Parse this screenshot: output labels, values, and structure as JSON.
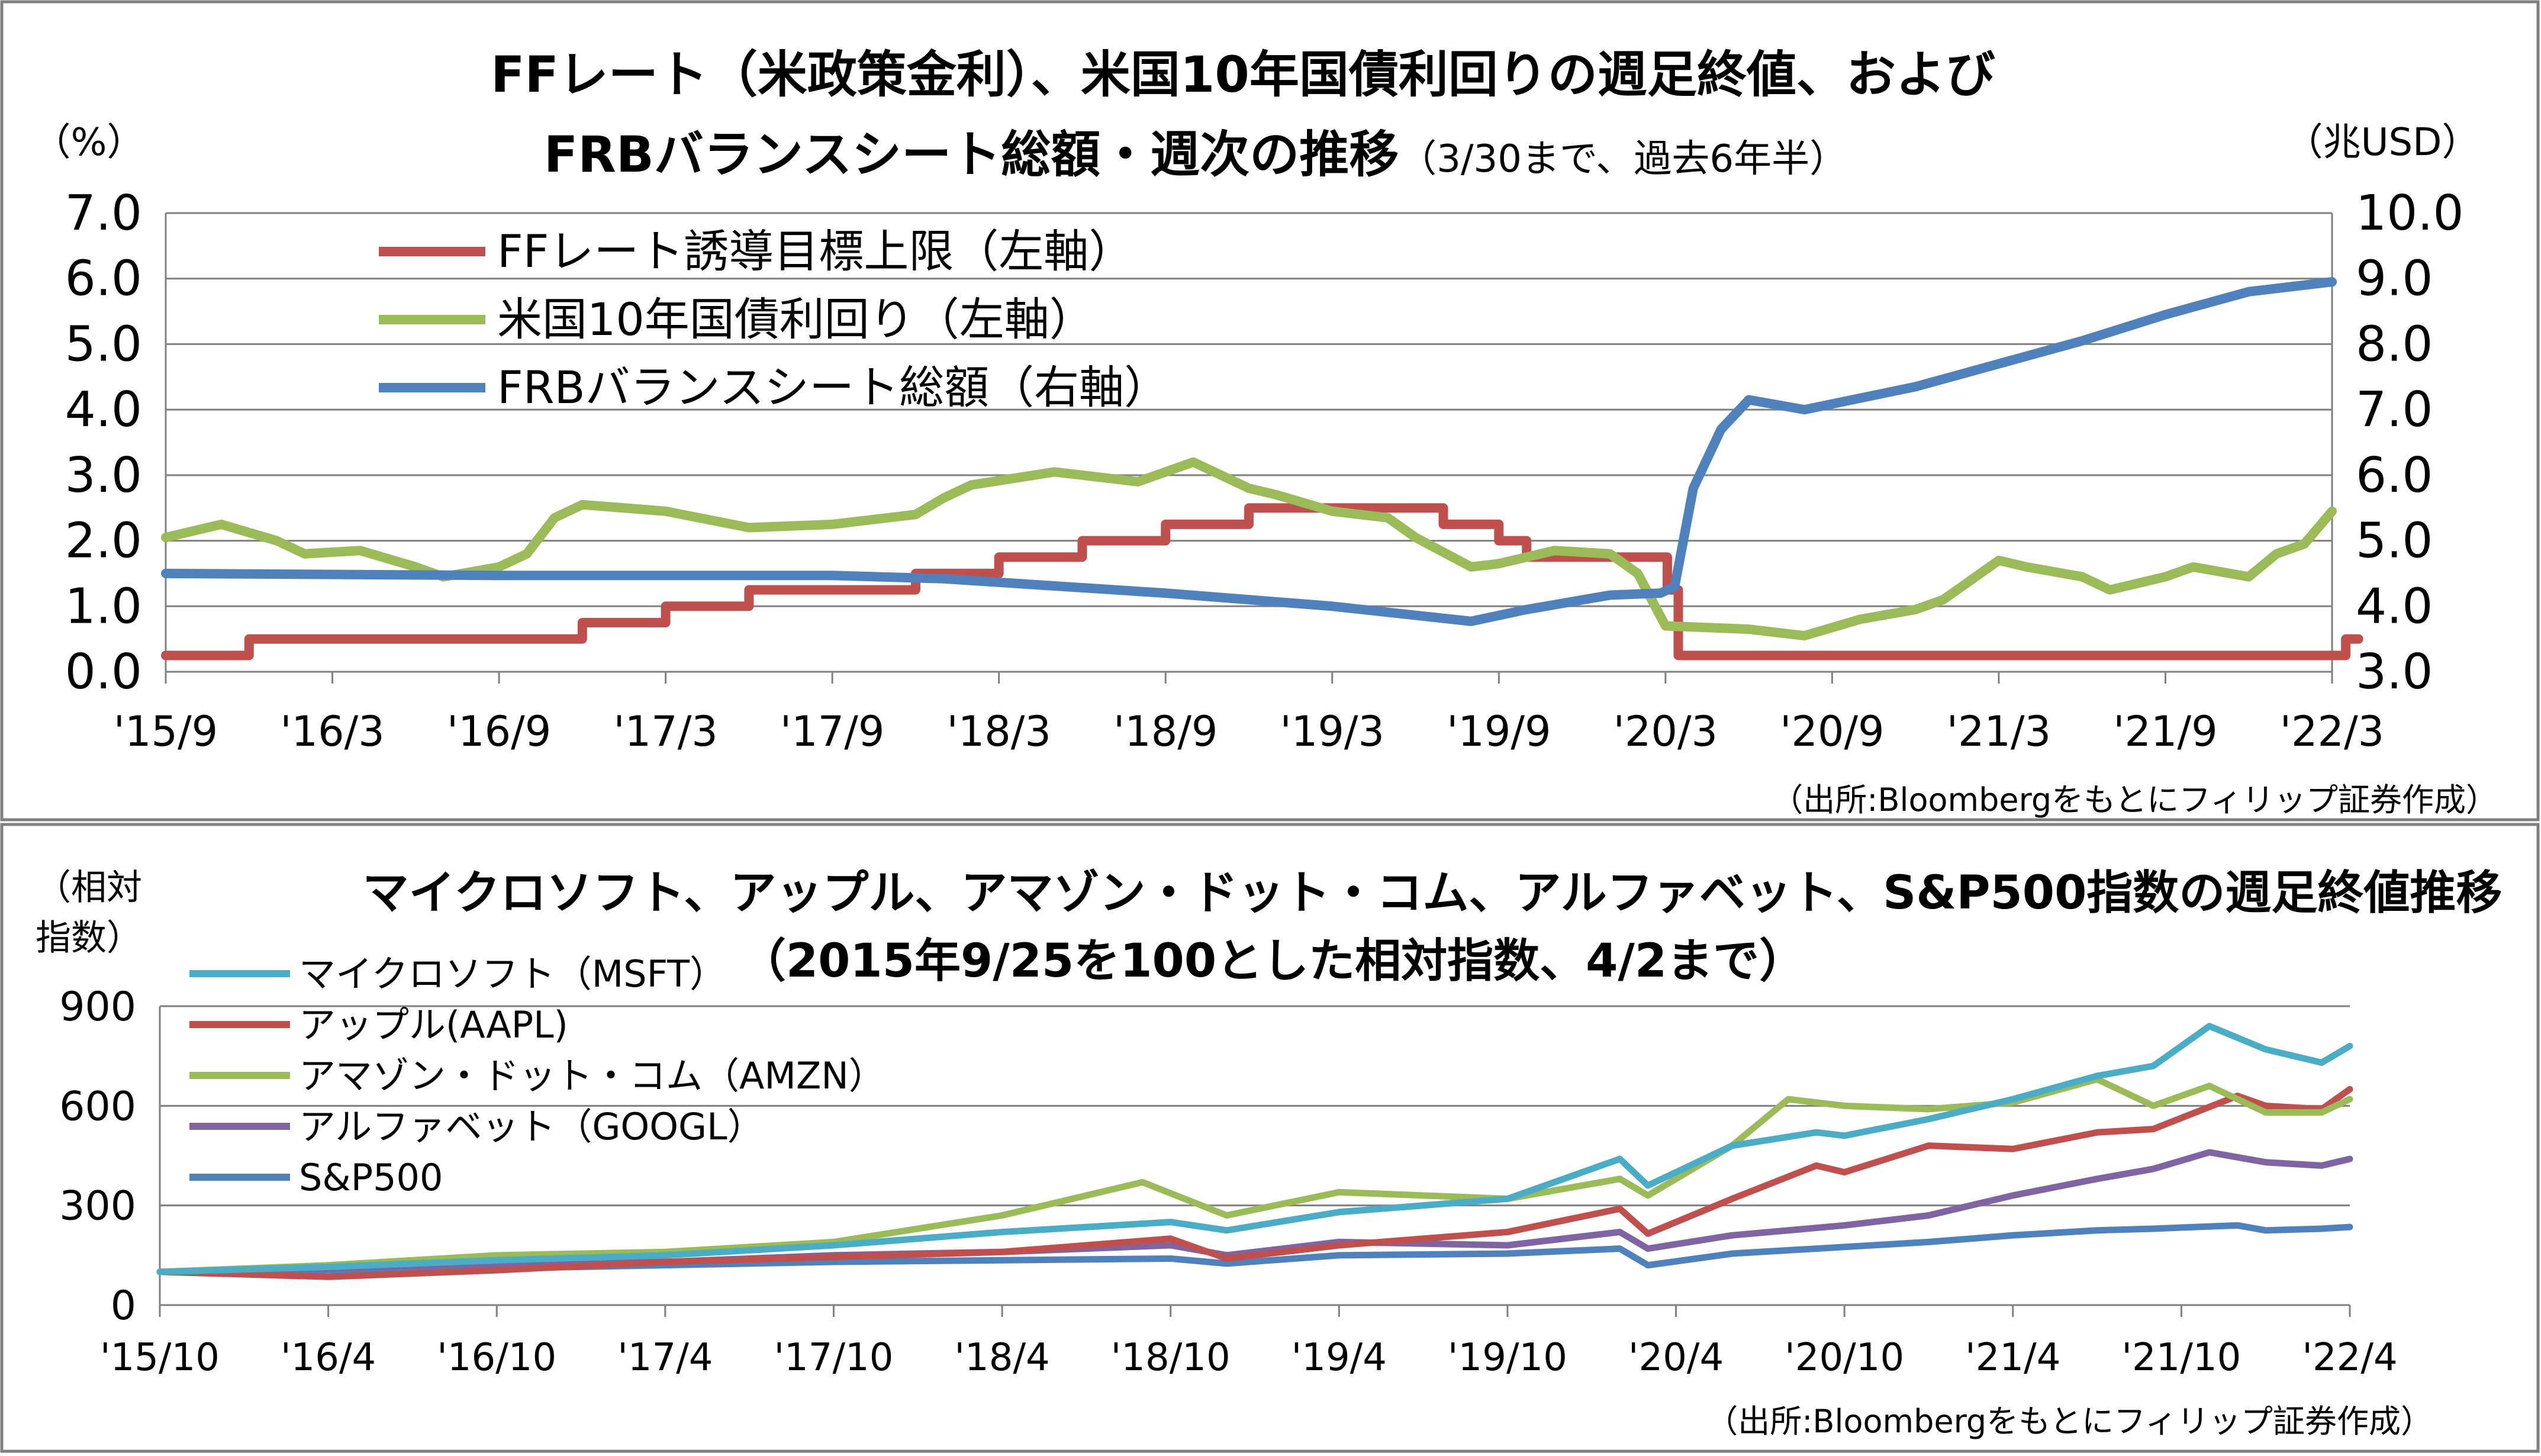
{
  "colors": {
    "red": "#c0504d",
    "green": "#9bbb59",
    "blue": "#4f81bd",
    "cyan": "#4bacc6",
    "purple": "#8064a2",
    "grid": "#808080",
    "border": "#808080"
  },
  "top": {
    "title_line1": "FFレート（米政策金利）、米国10年国債利回りの週足終値、および",
    "title_line2": "FRBバランスシート総額・週次の推移",
    "title_line2_small": "（3/30まで、過去6年半）",
    "left_unit": "（%）",
    "right_unit": "（兆USD）",
    "source": "（出所:Bloombergをもとにフィリップ証券作成）"
  },
  "bottom": {
    "title_line1": "マイクロソフト、アップル、アマゾン・ドット・コム、アルファベット、S&P500指数の週足終値推移",
    "title_line2": "（2015年9/25を100とした相対指数、4/2まで）",
    "unit_line1": "（相対",
    "unit_line2": "指数）",
    "source": "（出所:Bloombergをもとにフィリップ証券作成）"
  },
  "chart_data": [
    {
      "type": "line",
      "title": "FFレート（米政策金利）、米国10年国債利回りの週足終値、およびFRBバランスシート総額・週次の推移（3/30まで、過去6年半）",
      "xlabel": "",
      "ylabel": "（%）",
      "ylabel_right": "（兆USD）",
      "x_tick_labels": [
        "'15/9",
        "'16/3",
        "'16/9",
        "'17/3",
        "'17/9",
        "'18/3",
        "'18/9",
        "'19/3",
        "'19/9",
        "'20/3",
        "'20/9",
        "'21/3",
        "'21/9",
        "'22/3"
      ],
      "ylim": [
        0,
        7
      ],
      "yticks": [
        "0.0",
        "1.0",
        "2.0",
        "3.0",
        "4.0",
        "5.0",
        "6.0",
        "7.0"
      ],
      "ylim_right": [
        3,
        10
      ],
      "yticks_right": [
        "3.0",
        "4.0",
        "5.0",
        "6.0",
        "7.0",
        "8.0",
        "9.0",
        "10.0"
      ],
      "grid": true,
      "legend_position": "top-left",
      "series": [
        {
          "name": "FFレート誘導目標上限（左軸）",
          "axis": "left",
          "color": "red",
          "step": true,
          "points": [
            [
              "2015-09",
              0.25
            ],
            [
              "2015-12",
              0.5
            ],
            [
              "2016-12",
              0.75
            ],
            [
              "2017-03",
              1.0
            ],
            [
              "2017-06",
              1.25
            ],
            [
              "2017-12",
              1.5
            ],
            [
              "2018-03",
              1.75
            ],
            [
              "2018-06",
              2.0
            ],
            [
              "2018-09",
              2.25
            ],
            [
              "2018-12",
              2.5
            ],
            [
              "2019-07",
              2.25
            ],
            [
              "2019-09",
              2.0
            ],
            [
              "2019-10",
              1.75
            ],
            [
              "2020-03-03",
              1.25
            ],
            [
              "2020-03-15",
              0.25
            ],
            [
              "2022-03-16",
              0.5
            ],
            [
              "2022-03-30",
              0.5
            ]
          ]
        },
        {
          "name": "米国10年国債利回り（左軸）",
          "axis": "left",
          "color": "green",
          "step": false,
          "points": [
            [
              "2015-09",
              2.05
            ],
            [
              "2015-11",
              2.25
            ],
            [
              "2016-01",
              2.0
            ],
            [
              "2016-02",
              1.8
            ],
            [
              "2016-04",
              1.85
            ],
            [
              "2016-06",
              1.6
            ],
            [
              "2016-07",
              1.45
            ],
            [
              "2016-09",
              1.6
            ],
            [
              "2016-10",
              1.8
            ],
            [
              "2016-11",
              2.35
            ],
            [
              "2016-12",
              2.55
            ],
            [
              "2017-03",
              2.45
            ],
            [
              "2017-06",
              2.2
            ],
            [
              "2017-09",
              2.25
            ],
            [
              "2017-12",
              2.4
            ],
            [
              "2018-01",
              2.65
            ],
            [
              "2018-02",
              2.85
            ],
            [
              "2018-05",
              3.05
            ],
            [
              "2018-08",
              2.9
            ],
            [
              "2018-10",
              3.2
            ],
            [
              "2018-12",
              2.8
            ],
            [
              "2019-01",
              2.7
            ],
            [
              "2019-03",
              2.45
            ],
            [
              "2019-05",
              2.35
            ],
            [
              "2019-06",
              2.05
            ],
            [
              "2019-08",
              1.6
            ],
            [
              "2019-09",
              1.65
            ],
            [
              "2019-11",
              1.85
            ],
            [
              "2020-01",
              1.8
            ],
            [
              "2020-02",
              1.5
            ],
            [
              "2020-03",
              0.7
            ],
            [
              "2020-06",
              0.65
            ],
            [
              "2020-08",
              0.55
            ],
            [
              "2020-10",
              0.8
            ],
            [
              "2020-12",
              0.95
            ],
            [
              "2021-01",
              1.1
            ],
            [
              "2021-03",
              1.7
            ],
            [
              "2021-04",
              1.6
            ],
            [
              "2021-06",
              1.45
            ],
            [
              "2021-07",
              1.25
            ],
            [
              "2021-09",
              1.45
            ],
            [
              "2021-10",
              1.6
            ],
            [
              "2021-12",
              1.45
            ],
            [
              "2022-01",
              1.8
            ],
            [
              "2022-02",
              1.95
            ],
            [
              "2022-03",
              2.45
            ]
          ]
        },
        {
          "name": "FRBバランスシート総額（右軸）",
          "axis": "right",
          "color": "blue",
          "step": false,
          "points": [
            [
              "2015-09",
              4.5
            ],
            [
              "2016-09",
              4.47
            ],
            [
              "2017-09",
              4.47
            ],
            [
              "2018-01",
              4.42
            ],
            [
              "2018-09",
              4.2
            ],
            [
              "2019-03",
              4.0
            ],
            [
              "2019-08",
              3.77
            ],
            [
              "2019-10",
              3.95
            ],
            [
              "2020-01",
              4.17
            ],
            [
              "2020-02-26",
              4.2
            ],
            [
              "2020-03-11",
              4.3
            ],
            [
              "2020-04",
              5.8
            ],
            [
              "2020-05",
              6.7
            ],
            [
              "2020-06",
              7.15
            ],
            [
              "2020-08",
              7.0
            ],
            [
              "2020-12",
              7.35
            ],
            [
              "2021-03",
              7.7
            ],
            [
              "2021-06",
              8.05
            ],
            [
              "2021-09",
              8.45
            ],
            [
              "2021-12",
              8.8
            ],
            [
              "2022-03",
              8.95
            ]
          ]
        }
      ]
    },
    {
      "type": "line",
      "title": "マイクロソフト、アップル、アマゾン・ドット・コム、アルファベット、S&P500指数の週足終値推移（2015年9/25を100とした相対指数、4/2まで）",
      "xlabel": "",
      "ylabel": "（相対指数）",
      "x_tick_labels": [
        "'15/10",
        "'16/4",
        "'16/10",
        "'17/4",
        "'17/10",
        "'18/4",
        "'18/10",
        "'19/4",
        "'19/10",
        "'20/4",
        "'20/10",
        "'21/4",
        "'21/10",
        "'22/4"
      ],
      "ylim": [
        0,
        900
      ],
      "yticks": [
        "0",
        "300",
        "600",
        "900"
      ],
      "grid": true,
      "legend_position": "top-left",
      "series": [
        {
          "name": "マイクロソフト（MSFT）",
          "color": "cyan",
          "points": [
            [
              "2015-10",
              100
            ],
            [
              "2016-04",
              115
            ],
            [
              "2016-10",
              135
            ],
            [
              "2017-04",
              150
            ],
            [
              "2017-10",
              180
            ],
            [
              "2018-04",
              220
            ],
            [
              "2018-10",
              250
            ],
            [
              "2018-12",
              225
            ],
            [
              "2019-04",
              280
            ],
            [
              "2019-10",
              320
            ],
            [
              "2020-02",
              440
            ],
            [
              "2020-03",
              360
            ],
            [
              "2020-06",
              480
            ],
            [
              "2020-09",
              520
            ],
            [
              "2020-10",
              510
            ],
            [
              "2021-01",
              560
            ],
            [
              "2021-04",
              620
            ],
            [
              "2021-07",
              690
            ],
            [
              "2021-09",
              720
            ],
            [
              "2021-11",
              840
            ],
            [
              "2022-01",
              770
            ],
            [
              "2022-03",
              730
            ],
            [
              "2022-04",
              780
            ]
          ]
        },
        {
          "name": "アップル(AAPL)",
          "color": "red",
          "points": [
            [
              "2015-10",
              100
            ],
            [
              "2016-04",
              85
            ],
            [
              "2016-10",
              105
            ],
            [
              "2017-04",
              130
            ],
            [
              "2017-10",
              145
            ],
            [
              "2018-04",
              160
            ],
            [
              "2018-10",
              200
            ],
            [
              "2018-12",
              140
            ],
            [
              "2019-04",
              180
            ],
            [
              "2019-10",
              220
            ],
            [
              "2020-02",
              290
            ],
            [
              "2020-03",
              215
            ],
            [
              "2020-06",
              320
            ],
            [
              "2020-09",
              420
            ],
            [
              "2020-10",
              400
            ],
            [
              "2021-01",
              480
            ],
            [
              "2021-04",
              470
            ],
            [
              "2021-07",
              520
            ],
            [
              "2021-09",
              530
            ],
            [
              "2021-12",
              630
            ],
            [
              "2022-01",
              600
            ],
            [
              "2022-03",
              590
            ],
            [
              "2022-04",
              650
            ]
          ]
        },
        {
          "name": "アマゾン・ドット・コム（AMZN）",
          "color": "green",
          "points": [
            [
              "2015-10",
              100
            ],
            [
              "2016-04",
              120
            ],
            [
              "2016-10",
              150
            ],
            [
              "2017-04",
              160
            ],
            [
              "2017-10",
              190
            ],
            [
              "2018-04",
              270
            ],
            [
              "2018-09",
              370
            ],
            [
              "2018-12",
              270
            ],
            [
              "2019-04",
              340
            ],
            [
              "2019-10",
              320
            ],
            [
              "2020-02",
              380
            ],
            [
              "2020-03",
              330
            ],
            [
              "2020-06",
              480
            ],
            [
              "2020-08",
              620
            ],
            [
              "2020-10",
              600
            ],
            [
              "2021-01",
              590
            ],
            [
              "2021-04",
              610
            ],
            [
              "2021-07",
              680
            ],
            [
              "2021-09",
              600
            ],
            [
              "2021-11",
              660
            ],
            [
              "2022-01",
              580
            ],
            [
              "2022-03",
              580
            ],
            [
              "2022-04",
              620
            ]
          ]
        },
        {
          "name": "アルファベット（GOOGL）",
          "color": "purple",
          "points": [
            [
              "2015-10",
              100
            ],
            [
              "2016-04",
              110
            ],
            [
              "2016-10",
              125
            ],
            [
              "2017-04",
              130
            ],
            [
              "2017-10",
              150
            ],
            [
              "2018-04",
              160
            ],
            [
              "2018-10",
              180
            ],
            [
              "2018-12",
              150
            ],
            [
              "2019-04",
              190
            ],
            [
              "2019-10",
              180
            ],
            [
              "2020-02",
              220
            ],
            [
              "2020-03",
              170
            ],
            [
              "2020-06",
              210
            ],
            [
              "2020-10",
              240
            ],
            [
              "2021-01",
              270
            ],
            [
              "2021-04",
              330
            ],
            [
              "2021-07",
              380
            ],
            [
              "2021-09",
              410
            ],
            [
              "2021-11",
              460
            ],
            [
              "2022-01",
              430
            ],
            [
              "2022-03",
              420
            ],
            [
              "2022-04",
              440
            ]
          ]
        },
        {
          "name": "S&P500",
          "color": "blue",
          "points": [
            [
              "2015-10",
              100
            ],
            [
              "2016-04",
              105
            ],
            [
              "2016-10",
              110
            ],
            [
              "2017-04",
              120
            ],
            [
              "2017-10",
              130
            ],
            [
              "2018-04",
              135
            ],
            [
              "2018-10",
              140
            ],
            [
              "2018-12",
              125
            ],
            [
              "2019-04",
              150
            ],
            [
              "2019-10",
              155
            ],
            [
              "2020-02",
              170
            ],
            [
              "2020-03",
              120
            ],
            [
              "2020-06",
              155
            ],
            [
              "2020-10",
              175
            ],
            [
              "2021-01",
              190
            ],
            [
              "2021-04",
              210
            ],
            [
              "2021-07",
              225
            ],
            [
              "2021-09",
              230
            ],
            [
              "2021-12",
              240
            ],
            [
              "2022-01",
              225
            ],
            [
              "2022-03",
              230
            ],
            [
              "2022-04",
              235
            ]
          ]
        }
      ]
    }
  ]
}
